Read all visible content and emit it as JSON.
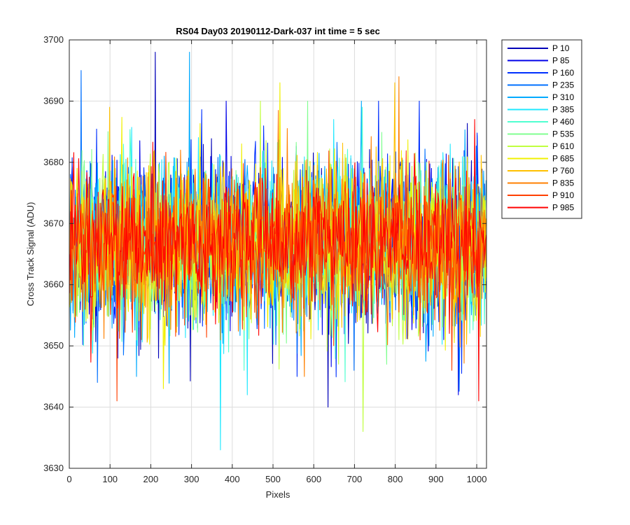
{
  "chart_data": {
    "type": "line",
    "title": "RS04 Day03 20190112-Dark-037 int time = 5 sec",
    "xlabel": "Pixels",
    "ylabel": "Cross Track Signal (ADU)",
    "xlim": [
      0,
      1024
    ],
    "ylim": [
      3630,
      3700
    ],
    "xticks": [
      0,
      100,
      200,
      300,
      400,
      500,
      600,
      700,
      800,
      900,
      1000
    ],
    "yticks": [
      3630,
      3640,
      3650,
      3660,
      3670,
      3680,
      3690,
      3700
    ],
    "grid": true,
    "legend_position": "outside-top-right",
    "x_start": 1,
    "x_end": 1024,
    "series": [
      {
        "name": "P 10",
        "color": "#0000b8",
        "mean": 3667,
        "spread": 6.5,
        "peaks": [
          [
            212,
            3698
          ],
          [
            636,
            3640
          ],
          [
            220,
            3648
          ]
        ]
      },
      {
        "name": "P 85",
        "color": "#0000e8",
        "mean": 3667,
        "spread": 6.5,
        "peaks": [
          [
            386,
            3690
          ],
          [
            955,
            3642
          ],
          [
            120,
            3648
          ]
        ]
      },
      {
        "name": "P 160",
        "color": "#0030ff",
        "mean": 3667,
        "spread": 6.5,
        "peaks": [
          [
            760,
            3690
          ],
          [
            560,
            3645
          ],
          [
            860,
            3690
          ]
        ]
      },
      {
        "name": "P 235",
        "color": "#0070ff",
        "mean": 3667,
        "spread": 6.5,
        "peaks": [
          [
            30,
            3695
          ],
          [
            700,
            3646
          ]
        ]
      },
      {
        "name": "P 310",
        "color": "#00aaff",
        "mean": 3667,
        "spread": 6.5,
        "peaks": [
          [
            295,
            3698
          ],
          [
            165,
            3645
          ]
        ]
      },
      {
        "name": "P 385",
        "color": "#20e8ff",
        "mean": 3667,
        "spread": 6.5,
        "peaks": [
          [
            372,
            3633
          ],
          [
            650,
            3687
          ]
        ]
      },
      {
        "name": "P 460",
        "color": "#50ffd0",
        "mean": 3667,
        "spread": 6.5,
        "peaks": [
          [
            720,
            3689
          ],
          [
            430,
            3646
          ]
        ]
      },
      {
        "name": "P 535",
        "color": "#80ff90",
        "mean": 3667,
        "spread": 6.5,
        "peaks": [
          [
            585,
            3690
          ],
          [
            780,
            3647
          ]
        ]
      },
      {
        "name": "P 610",
        "color": "#c0ff40",
        "mean": 3667,
        "spread": 6.5,
        "peaks": [
          [
            722,
            3636
          ],
          [
            470,
            3690
          ]
        ]
      },
      {
        "name": "P 685",
        "color": "#f0f000",
        "mean": 3667,
        "spread": 6.5,
        "peaks": [
          [
            518,
            3693
          ],
          [
            232,
            3643
          ]
        ]
      },
      {
        "name": "P 760",
        "color": "#ffc000",
        "mean": 3667,
        "spread": 6.5,
        "peaks": [
          [
            800,
            3693
          ],
          [
            100,
            3689
          ]
        ]
      },
      {
        "name": "P 835",
        "color": "#ff8000",
        "mean": 3667,
        "spread": 6.5,
        "peaks": [
          [
            810,
            3694
          ],
          [
            578,
            3645
          ]
        ]
      },
      {
        "name": "P 910",
        "color": "#ff4000",
        "mean": 3667,
        "spread": 6.0,
        "peaks": [
          [
            118,
            3641
          ],
          [
            940,
            3646
          ]
        ]
      },
      {
        "name": "P 985",
        "color": "#ff0000",
        "mean": 3667,
        "spread": 5.5,
        "peaks": [
          [
            1005,
            3641
          ],
          [
            995,
            3687
          ]
        ]
      }
    ]
  }
}
